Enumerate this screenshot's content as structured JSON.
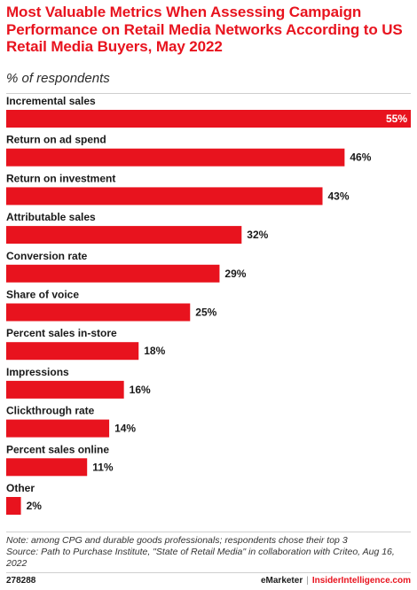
{
  "chart_data": {
    "type": "bar",
    "orientation": "horizontal",
    "title": "Most Valuable Metrics When Assessing Campaign Performance on Retail Media Networks According to US Retail Media Buyers, May 2022",
    "subtitle": "% of respondents",
    "categories": [
      "Incremental sales",
      "Return on ad spend",
      "Return on investment",
      "Attributable sales",
      "Conversion rate",
      "Share of voice",
      "Percent sales in-store",
      "Impressions",
      "Clickthrough rate",
      "Percent sales online",
      "Other"
    ],
    "values": [
      55,
      46,
      43,
      32,
      29,
      25,
      18,
      16,
      14,
      11,
      2
    ],
    "value_labels": [
      "55%",
      "46%",
      "43%",
      "32%",
      "29%",
      "25%",
      "18%",
      "16%",
      "14%",
      "11%",
      "2%"
    ],
    "xlim": [
      0,
      55
    ],
    "grid": false,
    "bar_color": "#e8131e"
  },
  "footer": {
    "note": "Note: among CPG and durable goods professionals; respondents chose their top 3",
    "source": "Source: Path to Purchase Institute, \"State of Retail Media\" in collaboration with Criteo, Aug 16, 2022",
    "chart_id": "278288",
    "brand": "eMarketer",
    "separator": "|",
    "brand2": "InsiderIntelligence.com"
  }
}
